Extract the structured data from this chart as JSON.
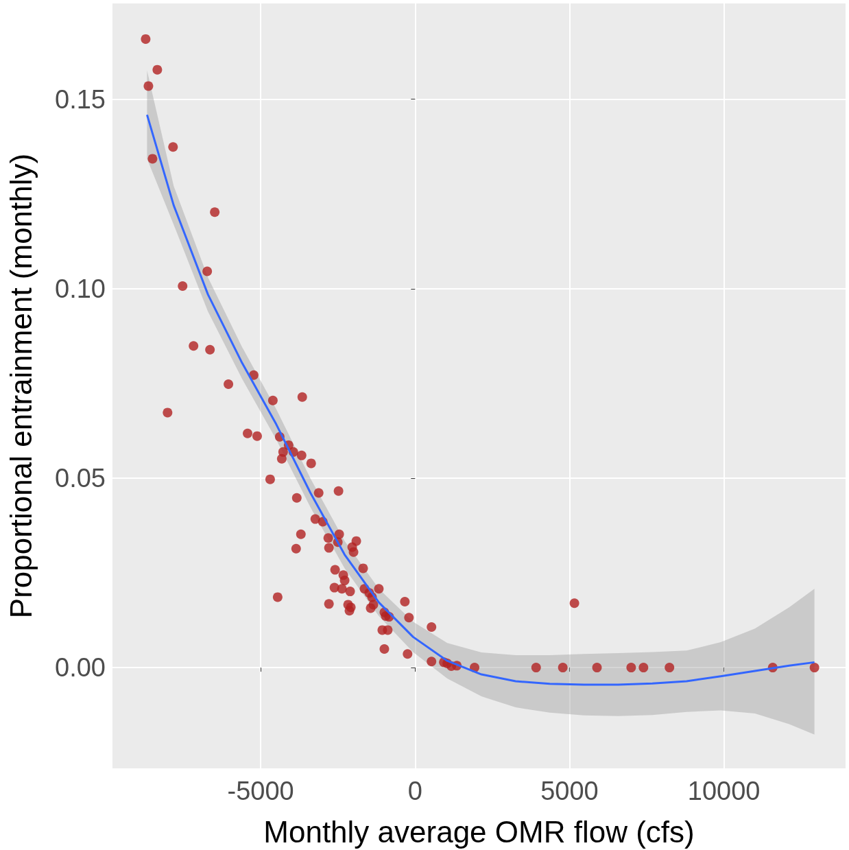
{
  "chart_data": {
    "type": "scatter",
    "xlabel": "Monthly average OMR flow (cfs)",
    "ylabel": "Proportional entrainment (monthly)",
    "xlim": [
      -9800,
      13940
    ],
    "xticks": [
      -5000,
      0,
      5000,
      10000
    ],
    "ylim": [
      -0.0266,
      0.1753
    ],
    "yticks": [
      {
        "value": 0,
        "label": "0.00"
      },
      {
        "value": 0.05,
        "label": "0.05"
      },
      {
        "value": 0.1,
        "label": "0.10"
      },
      {
        "value": 0.15,
        "label": "0.15"
      }
    ],
    "grid": true,
    "marker": "circle",
    "series": [
      {
        "color": "#b22222",
        "x": [
          -8725,
          -8636,
          -8348,
          -8503,
          -7839,
          -7529,
          -6732,
          -7175,
          -6643,
          -6488,
          -8016,
          -6045,
          -5226,
          -5425,
          -5115,
          -4606,
          -3654,
          -4694,
          -4384,
          -4274,
          -4318,
          -4097,
          -3942,
          -3676,
          -3366,
          -3831,
          -3853,
          -3698,
          -4451,
          -3122,
          -2480,
          -3233,
          -2989,
          -2812,
          -2790,
          -2458,
          -2502,
          -1904,
          -1993,
          -2037,
          -2591,
          -2325,
          -2281,
          -2613,
          -2369,
          -2104,
          -2790,
          -2170,
          -2126,
          -2082,
          -1683,
          -1639,
          -1484,
          -1395,
          -1439,
          -1174,
          -1351,
          -996,
          -952,
          -1063,
          -996,
          -886,
          -841,
          -332,
          -199,
          -244,
          531,
          531,
          930,
          1041,
          1174,
          1351,
          1926,
          3919,
          4783,
          5159,
          5890,
          6997,
          7396,
          8237,
          11581,
          12932
        ],
        "values": [
          0.1659,
          0.1535,
          0.1578,
          0.1343,
          0.1374,
          0.1007,
          0.1046,
          0.0849,
          0.0839,
          0.1202,
          0.0673,
          0.0748,
          0.0772,
          0.0618,
          0.0611,
          0.0705,
          0.0714,
          0.0497,
          0.0609,
          0.0569,
          0.0551,
          0.0587,
          0.0569,
          0.056,
          0.0539,
          0.0448,
          0.0314,
          0.0352,
          0.0186,
          0.0461,
          0.0466,
          0.0392,
          0.0385,
          0.0342,
          0.0316,
          0.0352,
          0.0331,
          0.0334,
          0.0305,
          0.0318,
          0.0258,
          0.0244,
          0.023,
          0.0211,
          0.0208,
          0.0201,
          0.0168,
          0.0166,
          0.015,
          0.0159,
          0.0262,
          0.0208,
          0.0197,
          0.0186,
          0.0157,
          0.0208,
          0.0166,
          0.0146,
          0.0136,
          0.0099,
          0.0049,
          0.0099,
          0.0134,
          0.0174,
          0.0132,
          0.0036,
          0.0107,
          0.0016,
          0.0014,
          0.0011,
          0.0004,
          0.0005,
          0,
          0,
          0,
          0.017,
          0,
          0,
          0,
          0,
          0,
          0
        ]
      },
      {
        "type": "line",
        "color": "#3366ff",
        "line_style": "solid",
        "marker": "none",
        "x": [
          -8680,
          -7817,
          -6709,
          -5602,
          -4495,
          -3388,
          -2281,
          -1174,
          -66,
          1041,
          2148,
          3255,
          4362,
          5469,
          6577,
          7684,
          8791,
          9898,
          11005,
          12113,
          12932
        ],
        "values": [
          0.1459,
          0.122,
          0.0985,
          0.0804,
          0.0642,
          0.0461,
          0.0298,
          0.0172,
          0.0081,
          0.0018,
          -0.0018,
          -0.0036,
          -0.0043,
          -0.0045,
          -0.0045,
          -0.0042,
          -0.0036,
          -0.0023,
          -0.0009,
          0.0005,
          0.0014
        ],
        "lower": [
          0.1343,
          0.1169,
          0.094,
          0.0762,
          0.0602,
          0.0423,
          0.0262,
          0.0136,
          0.0041,
          -0.0029,
          -0.0076,
          -0.0105,
          -0.0119,
          -0.0126,
          -0.0128,
          -0.0125,
          -0.0117,
          -0.0113,
          -0.0121,
          -0.0149,
          -0.0177
        ],
        "upper": [
          0.1576,
          0.1271,
          0.103,
          0.0846,
          0.0682,
          0.0499,
          0.0334,
          0.0208,
          0.0121,
          0.0065,
          0.004,
          0.0033,
          0.0033,
          0.0036,
          0.0038,
          0.0041,
          0.0045,
          0.0067,
          0.0103,
          0.0159,
          0.0208
        ]
      }
    ]
  }
}
